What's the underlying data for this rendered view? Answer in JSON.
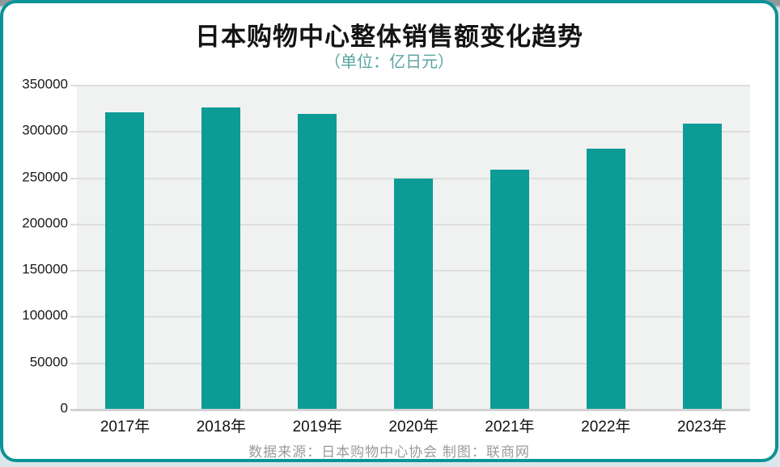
{
  "title": "日本购物中心整体销售额变化趋势",
  "subtitle": "（单位：亿日元）",
  "footer": "数据来源：日本购物中心协会  制图：联商网",
  "colors": {
    "bar": "#0d9b96",
    "frame": "#0c9396",
    "subtitle": "#5ba4a0",
    "plot_bg": "#f0f1f1",
    "grid": "#dedede",
    "footer": "#9b9b9b",
    "page_bg": "#dbe7ea"
  },
  "chart_data": {
    "type": "bar",
    "title": "日本购物中心整体销售额变化趋势",
    "subtitle": "（单位：亿日元）",
    "categories": [
      "2017年",
      "2018年",
      "2019年",
      "2020年",
      "2021年",
      "2022年",
      "2023年"
    ],
    "values": [
      320000,
      326000,
      319000,
      249000,
      258000,
      281000,
      308000
    ],
    "xlabel": "",
    "ylabel": "",
    "ylim": [
      0,
      350000
    ],
    "yticks": [
      0,
      50000,
      100000,
      150000,
      200000,
      250000,
      300000,
      350000
    ],
    "grid": true,
    "legend": false,
    "source_note": "数据来源：日本购物中心协会  制图：联商网"
  }
}
